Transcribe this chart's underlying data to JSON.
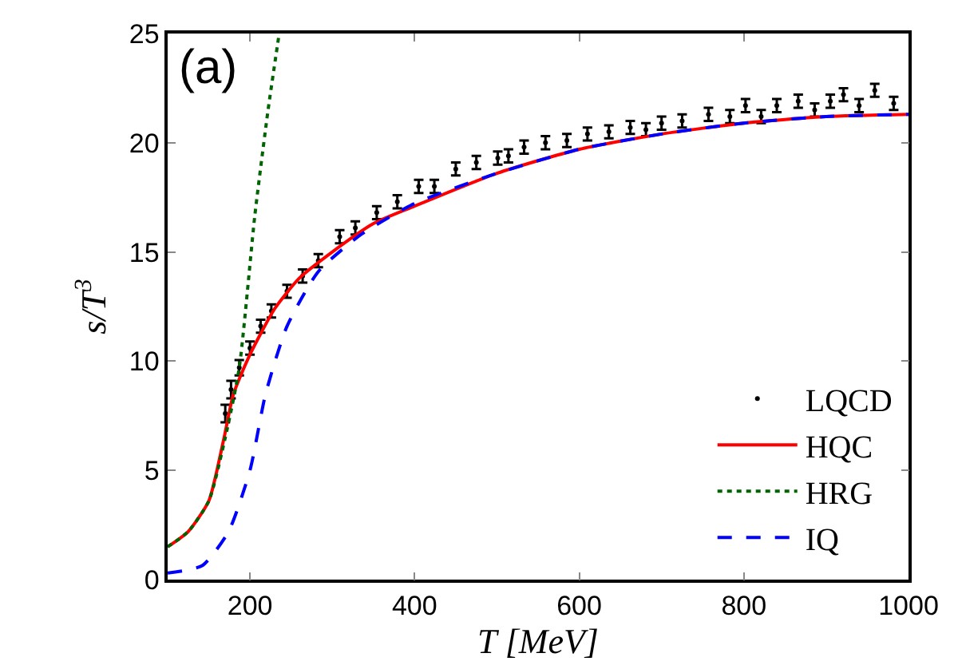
{
  "chart_data": {
    "type": "line",
    "xlabel": "T [MeV]",
    "ylabel": "s/T$^{3}$",
    "annotations": [
      "(a)"
    ],
    "xlim": [
      100,
      1000
    ],
    "xticks": [
      200,
      400,
      600,
      800,
      1000
    ],
    "ylim": [
      0,
      25
    ],
    "yticks": [
      0,
      5,
      10,
      15,
      20,
      25
    ],
    "legend": "bottom right",
    "series": [
      {
        "name": "LQCD",
        "type": "scatter",
        "color": "#000000",
        "x": [
          170,
          177,
          187,
          200,
          213,
          226,
          245,
          264,
          283,
          309,
          328,
          354,
          379,
          405,
          424,
          450,
          475,
          501,
          514,
          533,
          559,
          585,
          610,
          636,
          662,
          681,
          700,
          725,
          757,
          783,
          802,
          821,
          840,
          866,
          886,
          905,
          921,
          940,
          959,
          982
        ],
        "values": [
          7.6,
          8.7,
          9.7,
          10.6,
          11.6,
          12.3,
          13.2,
          13.9,
          14.6,
          15.7,
          16.1,
          16.8,
          17.3,
          18.0,
          18.0,
          18.8,
          19.1,
          19.3,
          19.4,
          19.8,
          20.0,
          20.1,
          20.4,
          20.5,
          20.7,
          20.6,
          20.9,
          21.0,
          21.3,
          21.2,
          21.7,
          21.2,
          21.7,
          21.9,
          21.5,
          21.9,
          22.2,
          21.7,
          22.4,
          21.8
        ],
        "errors": [
          0.4,
          0.4,
          0.35,
          0.3,
          0.3,
          0.3,
          0.3,
          0.3,
          0.3,
          0.3,
          0.3,
          0.3,
          0.3,
          0.3,
          0.3,
          0.3,
          0.3,
          0.3,
          0.3,
          0.3,
          0.3,
          0.3,
          0.3,
          0.3,
          0.3,
          0.3,
          0.3,
          0.3,
          0.3,
          0.3,
          0.3,
          0.3,
          0.3,
          0.3,
          0.3,
          0.3,
          0.3,
          0.3,
          0.3,
          0.3
        ]
      },
      {
        "name": "HQC",
        "line_style": "solid",
        "color": "#ff0000",
        "x": [
          100,
          125,
          150,
          168,
          180,
          200,
          230,
          260,
          300,
          350,
          400,
          500,
          600,
          700,
          800,
          900,
          1000
        ],
        "values": [
          1.5,
          2.2,
          3.6,
          6.4,
          8.5,
          10.3,
          12.4,
          13.8,
          15.0,
          16.3,
          17.1,
          18.6,
          19.7,
          20.4,
          20.9,
          21.2,
          21.3
        ]
      },
      {
        "name": "HRG",
        "line_style": "dotted",
        "color": "#006400",
        "x": [
          100,
          125,
          150,
          170,
          187,
          206,
          222,
          235.5
        ],
        "values": [
          1.5,
          2.2,
          3.6,
          6.5,
          9.7,
          16.7,
          21.5,
          25
        ]
      },
      {
        "name": "IQ",
        "line_style": "dashed",
        "color": "#0000ff",
        "x": [
          100,
          142,
          174,
          200,
          219,
          245,
          283,
          335,
          399,
          500,
          600,
          700,
          800,
          900,
          1000
        ],
        "values": [
          0.3,
          0.64,
          2.2,
          5.0,
          8.5,
          11.6,
          14.1,
          15.8,
          17.2,
          18.6,
          19.7,
          20.4,
          20.9,
          21.2,
          21.3
        ]
      }
    ]
  }
}
